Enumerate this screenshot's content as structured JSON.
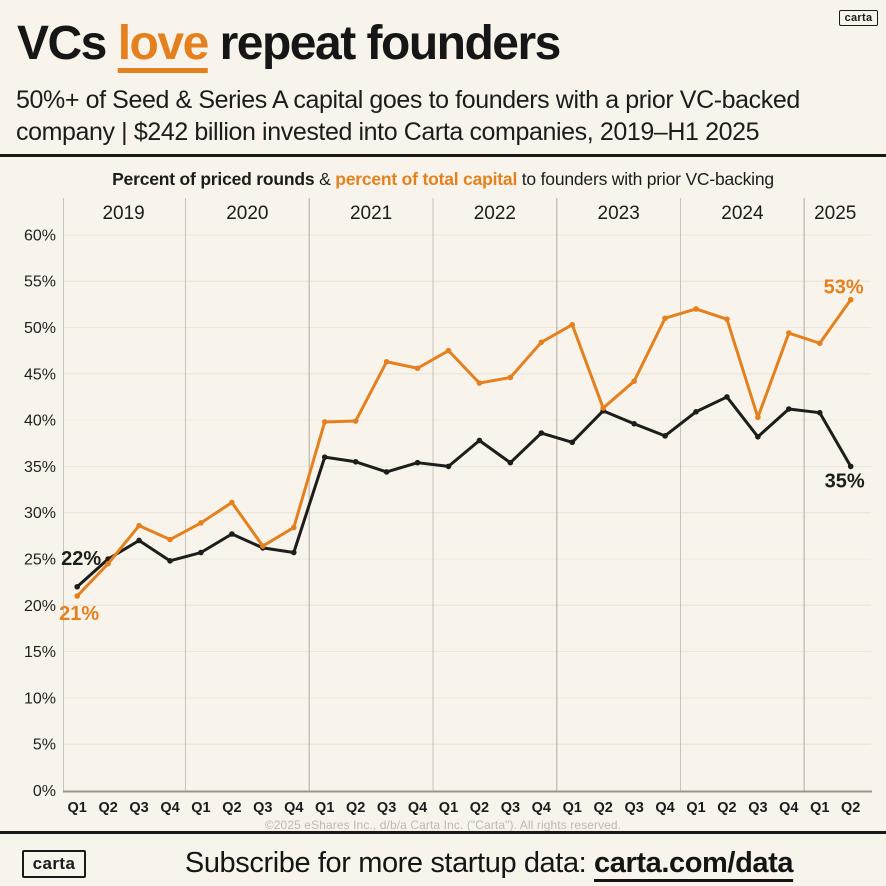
{
  "brand": {
    "logo_text": "carta"
  },
  "header": {
    "title_part1": "VCs ",
    "title_highlight": "love",
    "title_part2": " repeat founders",
    "subtitle": "50%+ of Seed & Series A capital goes to founders with a prior VC-backed\ncompany | $242 billion invested into Carta companies, 2019–H1 2025"
  },
  "legend": {
    "bold_black": "Percent of priced rounds",
    "separator": " & ",
    "bold_orange": "percent of total capital",
    "rest": " to founders with prior VC-backing"
  },
  "footer": {
    "copyright": "©2025 eShares Inc., d/b/a Carta Inc. (\"Carta\"). All rights reserved.",
    "subscribe_prefix": "Subscribe for more startup data: ",
    "subscribe_link": "carta.com/data"
  },
  "colors": {
    "background": "#f8f4ec",
    "black_series": "#1d1d1b",
    "orange_series": "#e5801e",
    "gridline": "#ebe7db",
    "year_separator": "#c7c3ba",
    "axis_line": "#9b968b",
    "tick_text": "#1f1f1f",
    "copyright_text": "#bdb9af"
  },
  "chart_data": {
    "type": "line",
    "title": "Percent of priced rounds & percent of total capital to founders with prior VC-backing",
    "ylim": [
      0,
      60
    ],
    "ytick_step": 5,
    "ytick_labels": [
      "0%",
      "5%",
      "10%",
      "15%",
      "20%",
      "25%",
      "30%",
      "35%",
      "40%",
      "45%",
      "50%",
      "55%",
      "60%"
    ],
    "grid": true,
    "years": [
      {
        "label": "2019",
        "quarters": 4
      },
      {
        "label": "2020",
        "quarters": 4
      },
      {
        "label": "2021",
        "quarters": 4
      },
      {
        "label": "2022",
        "quarters": 4
      },
      {
        "label": "2023",
        "quarters": 4
      },
      {
        "label": "2024",
        "quarters": 4
      },
      {
        "label": "2025",
        "quarters": 2
      }
    ],
    "quarter_labels": [
      "Q1",
      "Q2",
      "Q3",
      "Q4",
      "Q1",
      "Q2",
      "Q3",
      "Q4",
      "Q1",
      "Q2",
      "Q3",
      "Q4",
      "Q1",
      "Q2",
      "Q3",
      "Q4",
      "Q1",
      "Q2",
      "Q3",
      "Q4",
      "Q1",
      "Q2",
      "Q3",
      "Q4",
      "Q1",
      "Q2"
    ],
    "series": [
      {
        "name": "Percent of priced rounds",
        "color": "#1d1d1b",
        "values": [
          22,
          25,
          27,
          24.8,
          25.7,
          27.7,
          26.2,
          25.7,
          36,
          35.5,
          34.4,
          35.4,
          35,
          37.8,
          35.4,
          38.6,
          37.6,
          41,
          39.6,
          38.3,
          40.9,
          42.5,
          38.2,
          41.2,
          40.8,
          35
        ]
      },
      {
        "name": "percent of total capital",
        "color": "#e5801e",
        "values": [
          21,
          24.5,
          28.6,
          27.1,
          28.9,
          31.1,
          26.4,
          28.4,
          39.8,
          39.9,
          46.3,
          45.6,
          47.5,
          44,
          44.6,
          48.4,
          50.3,
          41.3,
          44.2,
          51,
          52,
          50.9,
          40.3,
          49.4,
          48.3,
          53
        ]
      }
    ],
    "annotations": [
      {
        "text": "22%",
        "series": 0,
        "point": "first"
      },
      {
        "text": "21%",
        "series": 1,
        "point": "first"
      },
      {
        "text": "53%",
        "series": 1,
        "point": "last"
      },
      {
        "text": "35%",
        "series": 0,
        "point": "last"
      }
    ]
  }
}
